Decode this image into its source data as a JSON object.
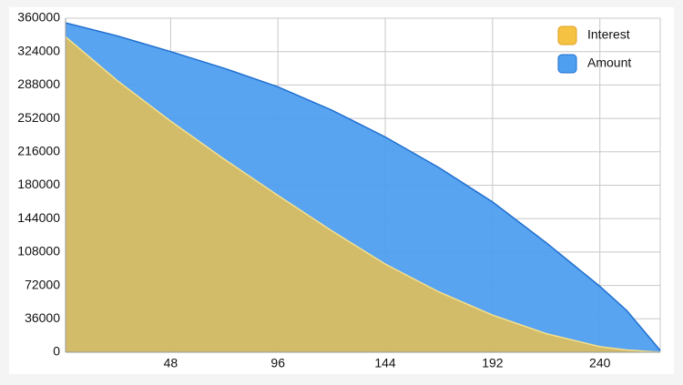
{
  "chart_data": {
    "type": "area",
    "x": [
      1,
      24,
      48,
      72,
      96,
      120,
      144,
      168,
      192,
      216,
      240,
      252,
      267
    ],
    "series": [
      {
        "name": "Interest",
        "color": "#f5c242",
        "values": [
          340000,
          293000,
          249000,
          208000,
          169000,
          131000,
          95000,
          65000,
          40000,
          20000,
          6000,
          2500,
          0
        ]
      },
      {
        "name": "Amount",
        "color": "#4f9ff0",
        "values": [
          355000,
          341000,
          324000,
          306000,
          286000,
          261000,
          232000,
          199000,
          162000,
          118000,
          71000,
          45000,
          2000
        ]
      }
    ],
    "xlim": [
      1,
      267
    ],
    "xticks": [
      48,
      96,
      144,
      192,
      240
    ],
    "ylim": [
      0,
      360000
    ],
    "yticks": [
      0,
      36000,
      72000,
      108000,
      144000,
      180000,
      216000,
      252000,
      288000,
      324000,
      360000
    ],
    "grid": true,
    "legend": "top-right"
  }
}
